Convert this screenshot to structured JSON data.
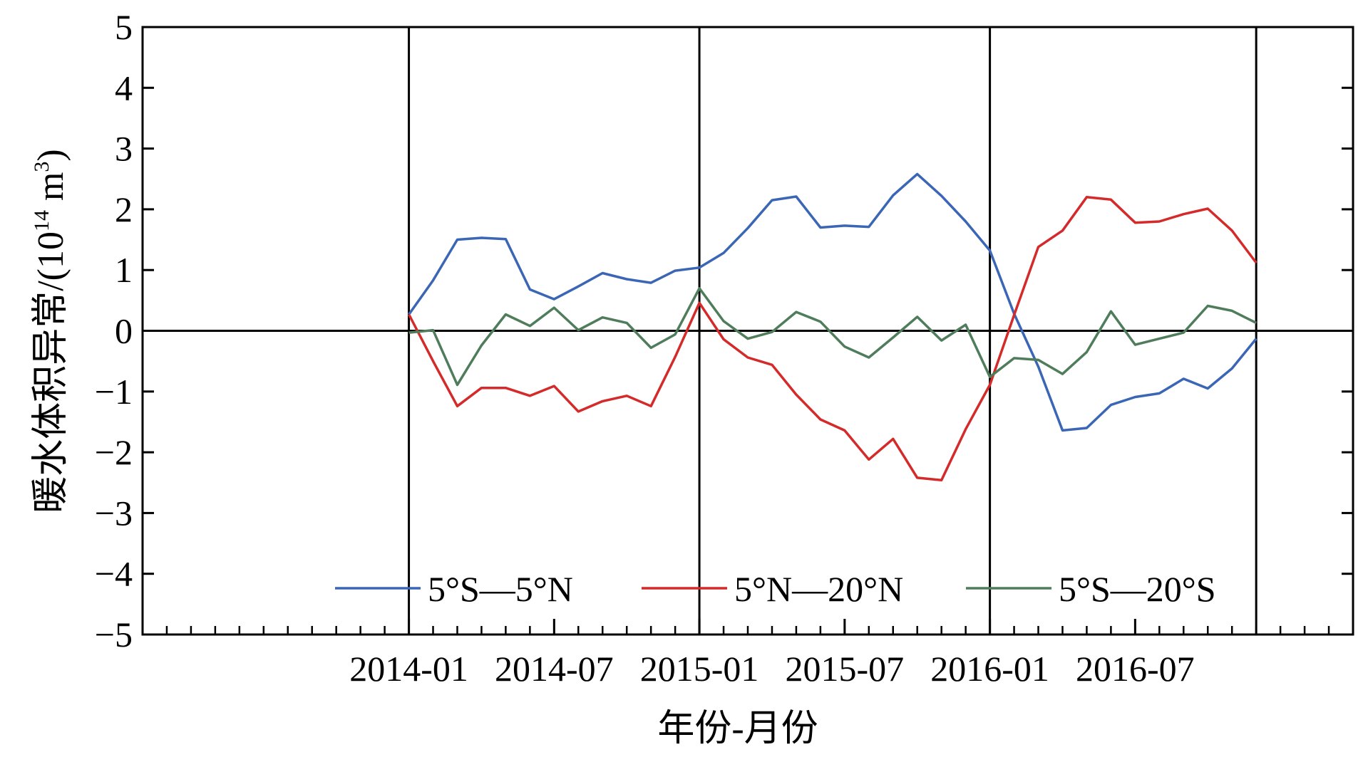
{
  "chart_data": {
    "type": "line",
    "xlabel": "年份-月份",
    "ylabel": "暖水体积异常/(10",
    "ylabel_sup": "14",
    "ylabel_unit": " m",
    "ylabel_unit_sup": "3",
    "ylabel_close": ")",
    "ylim": [
      -5,
      5
    ],
    "yticks": [
      -5,
      -4,
      -3,
      -2,
      -1,
      0,
      1,
      2,
      3,
      4,
      5
    ],
    "ytick_labels": [
      "−5",
      "−4",
      "−3",
      "−2",
      "−1",
      "0",
      "1",
      "2",
      "3",
      "4",
      "5"
    ],
    "xlim": [
      "2013-02",
      "2017-04"
    ],
    "xticks": [
      "2014-01",
      "2014-07",
      "2015-01",
      "2015-07",
      "2016-01",
      "2016-07"
    ],
    "x": [
      "2014-01",
      "2014-02",
      "2014-03",
      "2014-04",
      "2014-05",
      "2014-06",
      "2014-07",
      "2014-08",
      "2014-09",
      "2014-10",
      "2014-11",
      "2014-12",
      "2015-01",
      "2015-02",
      "2015-03",
      "2015-04",
      "2015-05",
      "2015-06",
      "2015-07",
      "2015-08",
      "2015-09",
      "2015-10",
      "2015-11",
      "2015-12",
      "2016-01",
      "2016-02",
      "2016-03",
      "2016-04",
      "2016-05",
      "2016-06",
      "2016-07",
      "2016-08",
      "2016-09",
      "2016-10",
      "2016-11",
      "2016-12"
    ],
    "vlines": [
      "2014-01",
      "2015-01",
      "2016-01",
      "2016-12"
    ],
    "hline": 0,
    "grid": false,
    "legend_position": "bottom",
    "series": [
      {
        "name": "5°S—5°N",
        "color": "#3a66b5",
        "values": [
          0.27,
          0.83,
          1.5,
          1.53,
          1.51,
          0.68,
          0.52,
          0.73,
          0.95,
          0.85,
          0.79,
          0.99,
          1.04,
          1.28,
          1.69,
          2.15,
          2.21,
          1.7,
          1.73,
          1.71,
          2.23,
          2.58,
          2.22,
          1.8,
          1.32,
          0.28,
          -0.59,
          -1.64,
          -1.6,
          -1.22,
          -1.09,
          -1.03,
          -0.79,
          -0.95,
          -0.62,
          -0.13
        ]
      },
      {
        "name": "5°N—20°N",
        "color": "#d42a2a",
        "values": [
          0.27,
          -0.5,
          -1.24,
          -0.94,
          -0.94,
          -1.07,
          -0.91,
          -1.33,
          -1.16,
          -1.07,
          -1.24,
          -0.43,
          0.46,
          -0.14,
          -0.44,
          -0.56,
          -1.05,
          -1.46,
          -1.64,
          -2.12,
          -1.78,
          -2.42,
          -2.46,
          -1.62,
          -0.89,
          0.26,
          1.38,
          1.65,
          2.2,
          2.16,
          1.78,
          1.8,
          1.92,
          2.01,
          1.65,
          1.12
        ]
      },
      {
        "name": "5°S—20°S",
        "color": "#4f7d5c",
        "values": [
          -0.03,
          0.01,
          -0.89,
          -0.24,
          0.27,
          0.08,
          0.38,
          0.01,
          0.22,
          0.13,
          -0.28,
          -0.06,
          0.7,
          0.16,
          -0.13,
          -0.02,
          0.31,
          0.15,
          -0.26,
          -0.44,
          -0.11,
          0.23,
          -0.16,
          0.1,
          -0.76,
          -0.45,
          -0.48,
          -0.71,
          -0.35,
          0.32,
          -0.23,
          -0.13,
          -0.03,
          0.41,
          0.33,
          0.13
        ]
      }
    ]
  }
}
